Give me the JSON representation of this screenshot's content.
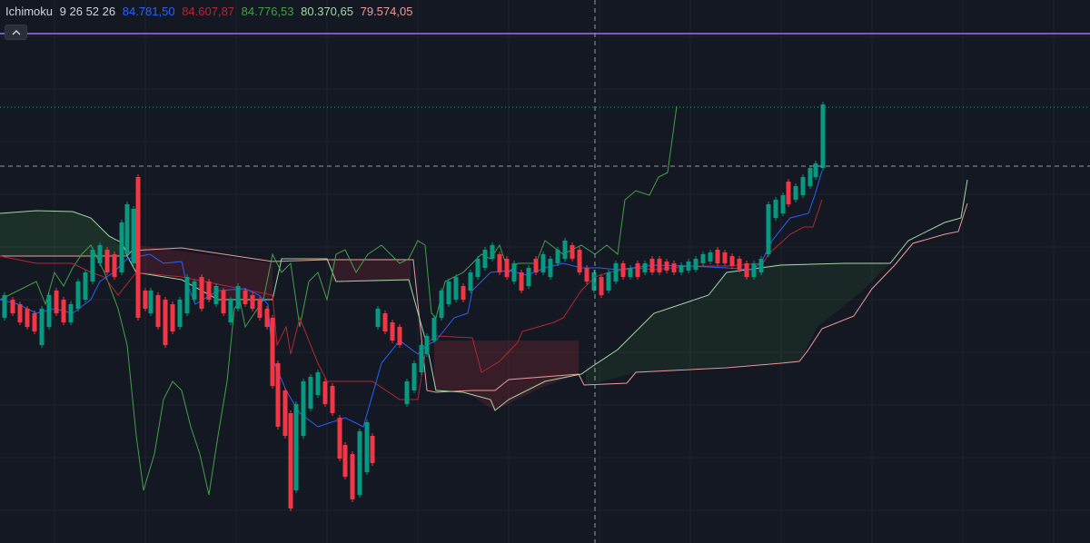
{
  "indicator_legend": {
    "name": "Ichimoku",
    "params": "9 26 52 26",
    "values": [
      {
        "label": "conversion",
        "text": "84.781,50",
        "color": "#2962ff"
      },
      {
        "label": "base",
        "text": "84.607,87",
        "color": "#b22833"
      },
      {
        "label": "lagging",
        "text": "84.776,53",
        "color": "#43a047"
      },
      {
        "label": "span_a",
        "text": "80.370,65",
        "color": "#a5d6a7"
      },
      {
        "label": "span_b",
        "text": "79.574,05",
        "color": "#ef9a9a"
      }
    ]
  },
  "colors": {
    "background": "#141823",
    "grid": "#1e222d",
    "up_candle": "#089981",
    "down_candle": "#f23645",
    "conversion_line": "#2962ff",
    "base_line": "#b22833",
    "lagging_span": "#43a047",
    "span_a": "#a5d6a7",
    "span_b": "#ef9a9a",
    "purple_line": "#7e57c2",
    "crosshair": "#9598a1",
    "dotted_level": "#22ab94"
  },
  "controls": {
    "collapse_icon": "chevron-up-icon"
  },
  "chart_data": {
    "type": "candlestick",
    "candles": [],
    "candle_step_px_note": ""
  }
}
